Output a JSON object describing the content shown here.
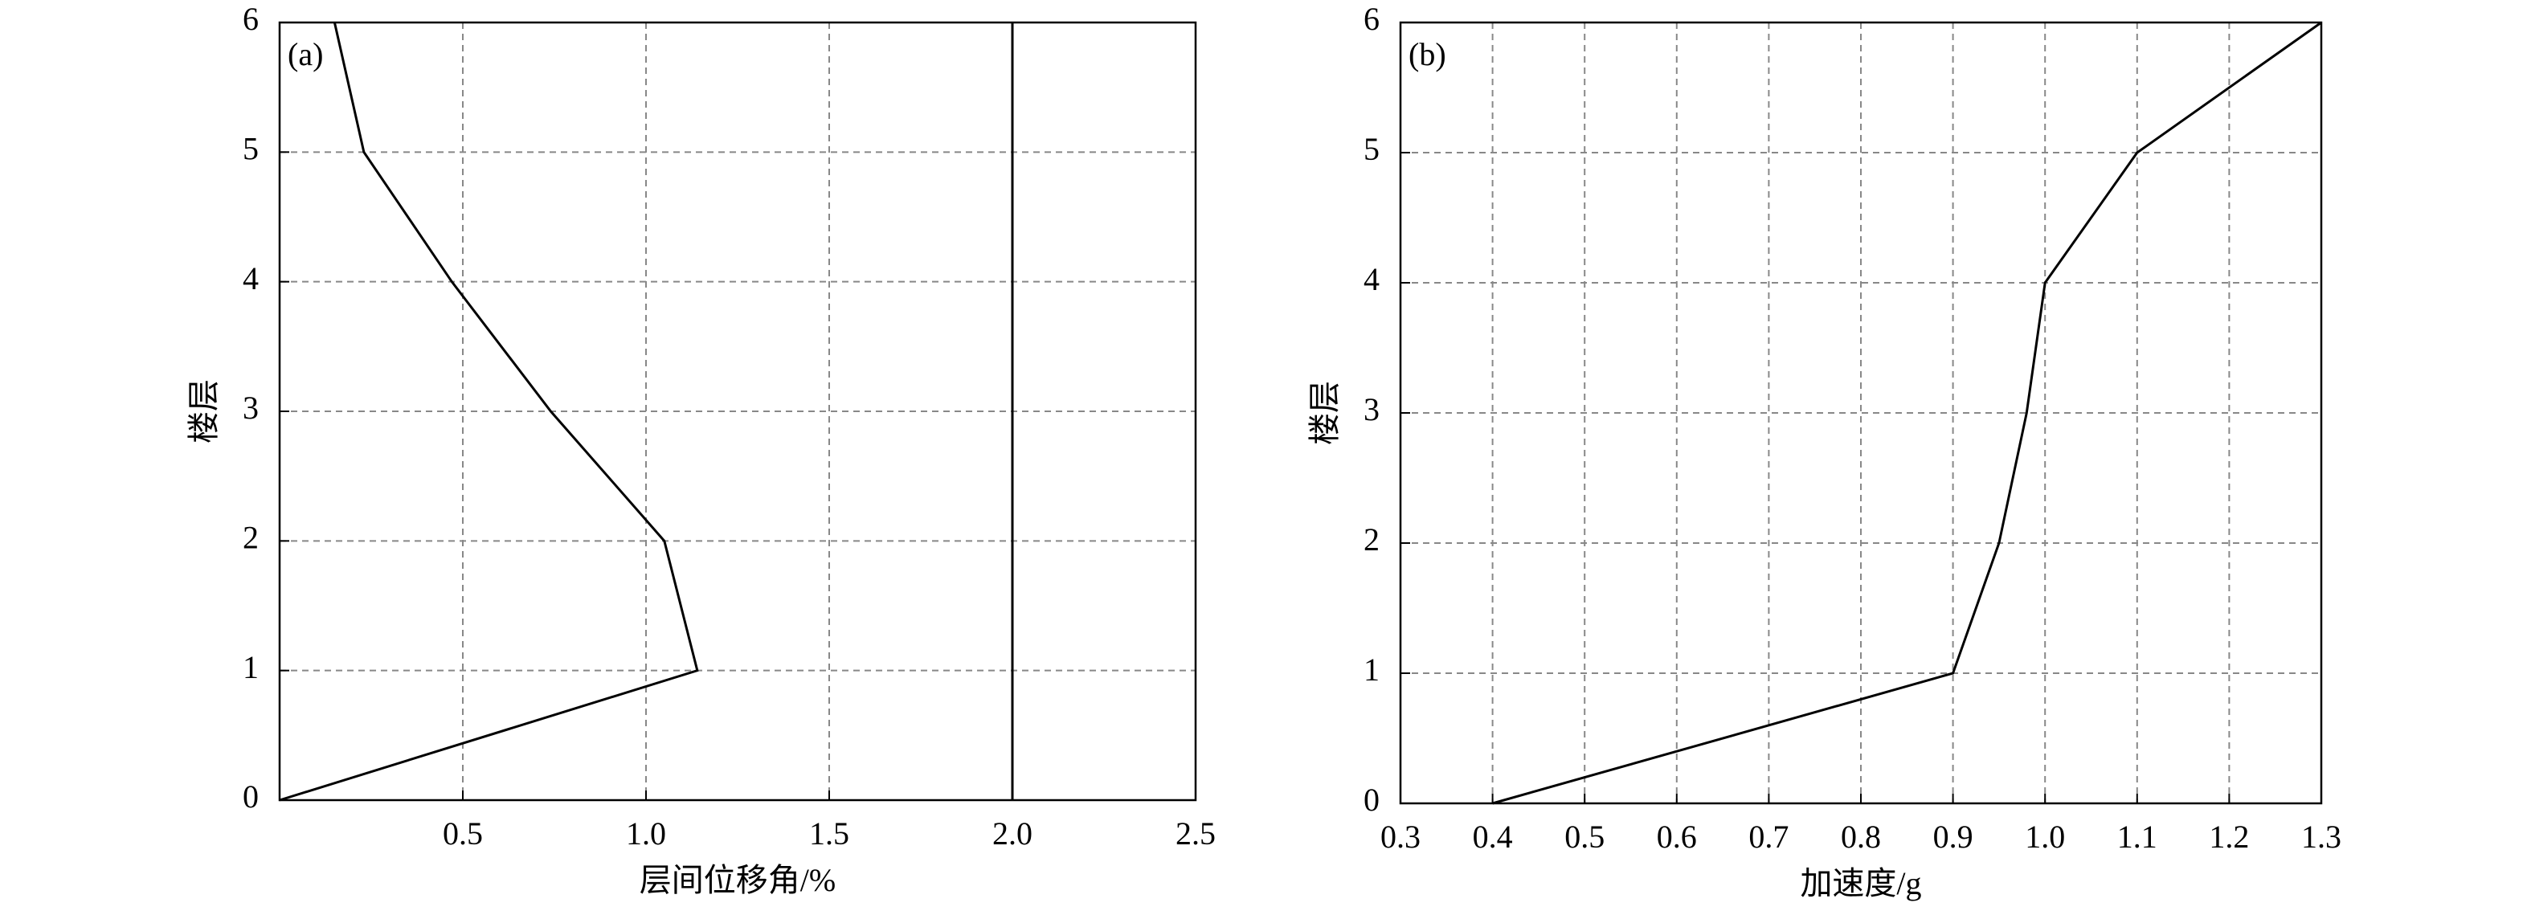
{
  "chart_data": [
    {
      "type": "line",
      "panel_label": "(a)",
      "xlabel": "层间位移角/%",
      "ylabel": "楼层",
      "xlim": [
        0,
        2.5
      ],
      "ylim": [
        0,
        6
      ],
      "xticks": [
        0.5,
        {
          "value": 1,
          "label": "1.0"
        },
        1.5,
        {
          "value": 2,
          "label": "2.0"
        },
        2.5
      ],
      "yticks": [
        0,
        1,
        2,
        3,
        4,
        5,
        6
      ],
      "grid": true,
      "series": [
        {
          "color": "#000000",
          "x": [
            0,
            1.14,
            1.05,
            0.74,
            0.47,
            0.23,
            0.15
          ],
          "values": [
            0,
            1,
            2,
            3,
            4,
            5,
            6
          ]
        },
        {
          "color": "#000000",
          "x": [
            2,
            2
          ],
          "values": [
            0,
            6
          ]
        }
      ]
    },
    {
      "type": "line",
      "panel_label": "(b)",
      "xlabel": "加速度/g",
      "ylabel": "楼层",
      "xlim": [
        0.3,
        1.3
      ],
      "ylim": [
        0,
        6
      ],
      "xticks": [
        0.3,
        0.4,
        0.5,
        0.6,
        0.7,
        0.8,
        0.9,
        {
          "value": 1,
          "label": "1.0"
        },
        1.1,
        1.2,
        1.3
      ],
      "yticks": [
        0,
        1,
        2,
        3,
        4,
        5,
        6
      ],
      "grid": true,
      "series": [
        {
          "color": "#000000",
          "x": [
            0.4,
            0.9,
            0.95,
            0.98,
            1.0,
            1.1,
            1.3
          ],
          "values": [
            0,
            1,
            2,
            3,
            4,
            5,
            6
          ]
        }
      ]
    }
  ]
}
